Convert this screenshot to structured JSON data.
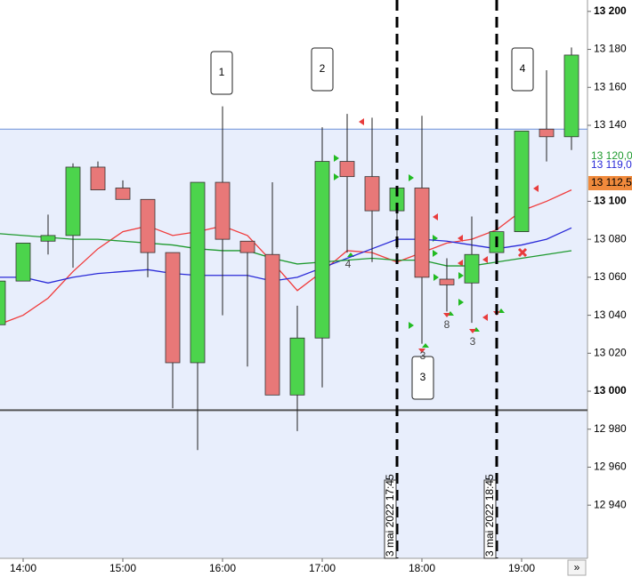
{
  "chart_data": {
    "type": "candlestick",
    "categories": [
      null,
      "14:00",
      null,
      null,
      null,
      "15:00",
      null,
      null,
      null,
      "16:00",
      null,
      null,
      null,
      "17:00",
      null,
      null,
      null,
      "18:00",
      null,
      null,
      null,
      "19:00",
      null,
      null
    ],
    "open": [
      13035,
      13058,
      13079,
      13082,
      13118,
      13107,
      13101,
      13073,
      13015,
      13110,
      13079,
      13072,
      12998,
      13028,
      13121,
      13113,
      13095,
      13107,
      13059,
      13057,
      13073,
      13084,
      13138,
      13134
    ],
    "high": [
      13060,
      13078,
      13093,
      13120,
      13121,
      13111,
      13101,
      13073,
      13110,
      13150,
      13079,
      13110,
      13045,
      13139,
      13146,
      13144,
      13107,
      13145,
      13070,
      13092,
      13084,
      13137,
      13169,
      13181
    ],
    "low": [
      13035,
      13058,
      13072,
      13065,
      13106,
      13101,
      13060,
      12991,
      12969,
      13040,
      13013,
      12998,
      12979,
      13002,
      13073,
      13068,
      13075,
      13025,
      13042,
      13036,
      13073,
      13084,
      13121,
      13127
    ],
    "close": [
      13058,
      13078,
      13082,
      13118,
      13106,
      13101,
      13073,
      13015,
      13110,
      13080,
      13073,
      12998,
      13028,
      13121,
      13113,
      13095,
      13107,
      13060,
      13056,
      13072,
      13084,
      13137,
      13134,
      13177
    ],
    "up_color": "#4cd44c",
    "down_color": "#e87878",
    "series": [
      {
        "color": "#f03c3c",
        "values": [
          13035,
          13040,
          13049,
          13063,
          13075,
          13084,
          13087,
          13082,
          13084,
          13087,
          13082,
          13068,
          13053,
          13063,
          13074,
          13073,
          13068,
          13073,
          13078,
          13080,
          13085,
          13095,
          13100,
          13106
        ]
      },
      {
        "color": "#2a2ad8",
        "values": [
          13060,
          13060,
          13057,
          13060,
          13062,
          13063,
          13064,
          13062,
          13061,
          13061,
          13061,
          13058,
          13060,
          13065,
          13070,
          13075,
          13080,
          13080,
          13079,
          13077,
          13075,
          13077,
          13080,
          13086
        ]
      },
      {
        "color": "#1f9a2f",
        "values": [
          13083,
          13082,
          13081,
          13080,
          13080,
          13079,
          13078,
          13077,
          13075,
          13074,
          13074,
          13070,
          13067,
          13068,
          13069,
          13070,
          13069,
          13069,
          13066,
          13066,
          13068,
          13070,
          13072,
          13074
        ]
      }
    ],
    "ylim": [
      12912,
      13206
    ],
    "yticks": [
      {
        "value": 13200,
        "label": "13 200"
      },
      {
        "value": 13180,
        "label": "13 180"
      },
      {
        "value": 13160,
        "label": "13 160"
      },
      {
        "value": 13140,
        "label": "13 140"
      },
      {
        "value": 13100,
        "label": "13 100"
      },
      {
        "value": 13080,
        "label": "13 080"
      },
      {
        "value": 13060,
        "label": "13 060"
      },
      {
        "value": 13040,
        "label": "13 040"
      },
      {
        "value": 13020,
        "label": "13 020"
      },
      {
        "value": 13000,
        "label": "13 000"
      },
      {
        "value": 12980,
        "label": "12 980"
      },
      {
        "value": 12960,
        "label": "12 960"
      },
      {
        "value": 12940,
        "label": "12 940"
      }
    ],
    "hlines": [
      {
        "value": 13138,
        "color": "#6a8fd8"
      },
      {
        "value": 12990,
        "color": "#555555"
      }
    ],
    "price_tags": [
      {
        "label": "13 120,0",
        "value": 13120,
        "color": "#1f9a2f"
      },
      {
        "label": "13 119,0",
        "value": 13119,
        "color": "#2a2ad8"
      },
      {
        "label": "13 112,5",
        "value": 13112.5,
        "color": "#f08a3c"
      }
    ],
    "event_lines": [
      "3 mai 2022 17:45",
      "3 mai 2022 18:45"
    ],
    "annotations": [
      "1",
      "2",
      "3",
      "4"
    ],
    "signal_labels": [
      "4",
      "8",
      "3",
      "3"
    ],
    "more_button": "»"
  }
}
